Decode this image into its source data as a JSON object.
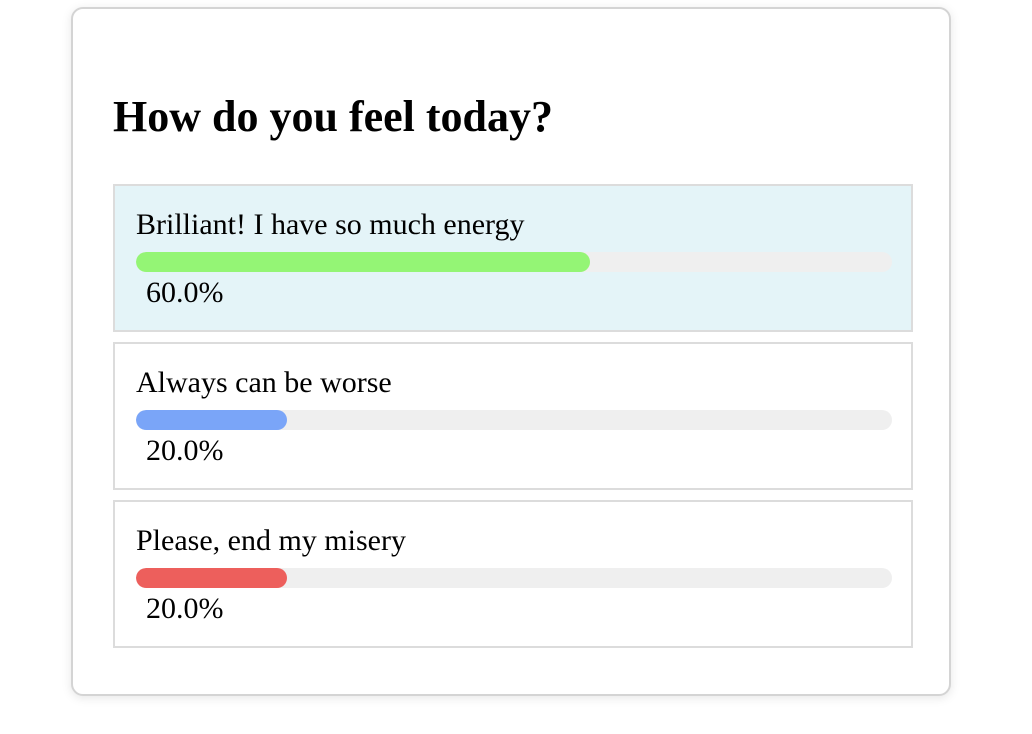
{
  "poll": {
    "question": "How do you feel today?",
    "options": [
      {
        "label": "Brilliant! I have so much energy",
        "percent_text": "60.0%",
        "percent": 60.0,
        "color": "#94f575",
        "selected": true
      },
      {
        "label": "Always can be worse",
        "percent_text": "20.0%",
        "percent": 20.0,
        "color": "#7aa5f8",
        "selected": false
      },
      {
        "label": "Please, end my misery",
        "percent_text": "20.0%",
        "percent": 20.0,
        "color": "#ed5f5c",
        "selected": false
      }
    ],
    "selected_background": "#e4f4f8",
    "track_color": "#efefef"
  }
}
